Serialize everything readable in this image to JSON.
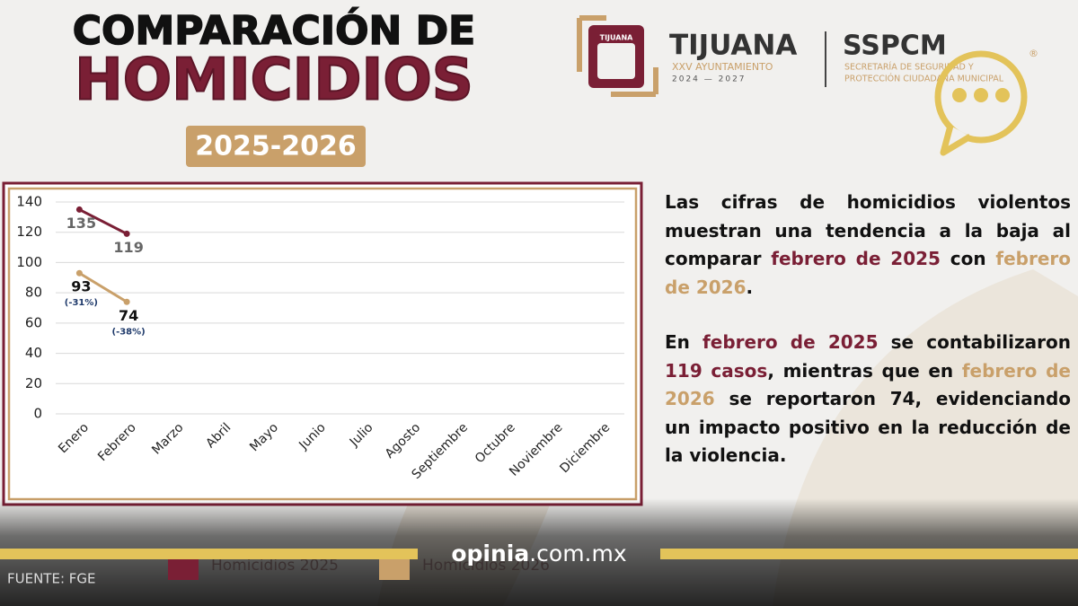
{
  "header": {
    "title_line1": "COMPARACIÓN DE",
    "title_line2": "HOMICIDIOS",
    "years": "2025-2026"
  },
  "logo": {
    "emblem": "TIJUANA",
    "city": "TIJUANA",
    "council": "XXV AYUNTAMIENTO",
    "period": "2024 — 2027",
    "agency": "SSPCM",
    "agency_line1": "SECRETARÍA DE SEGURIDAD Y",
    "agency_line2": "PROTECCIÓN CIUDADANA MUNICIPAL",
    "registered": "®"
  },
  "chart_data": {
    "type": "line",
    "categories": [
      "Enero",
      "Febrero",
      "Marzo",
      "Abril",
      "Mayo",
      "Junio",
      "Julio",
      "Agosto",
      "Septiembre",
      "Octubre",
      "Noviembre",
      "Diciembre"
    ],
    "series": [
      {
        "name": "Homicidios 2025",
        "color": "#7a1f35",
        "label_color": "#666666",
        "values": [
          135,
          119,
          null,
          null,
          null,
          null,
          null,
          null,
          null,
          null,
          null,
          null
        ]
      },
      {
        "name": "Homicidios 2026",
        "color": "#c9a06a",
        "label_color": "#111111",
        "values": [
          93,
          74,
          null,
          null,
          null,
          null,
          null,
          null,
          null,
          null,
          null,
          null
        ],
        "change_labels": [
          "(-31%)",
          "(-38%)",
          null,
          null,
          null,
          null,
          null,
          null,
          null,
          null,
          null,
          null
        ],
        "change_color": "#1f3a6b"
      }
    ],
    "ylim": [
      0,
      140
    ],
    "yticks": [
      0,
      20,
      40,
      60,
      80,
      100,
      120,
      140
    ],
    "grid": true
  },
  "body": {
    "paragraphs": [
      [
        {
          "text": "Las cifras de homicidios violentos muestran una tendencia a la baja al comparar "
        },
        {
          "text": "febrero de 2025",
          "color": "#7a1f35"
        },
        {
          "text": " con "
        },
        {
          "text": "febrero de 2026",
          "color": "#c9a06a"
        },
        {
          "text": "."
        }
      ],
      [
        {
          "text": "En "
        },
        {
          "text": "febrero de 2025",
          "color": "#7a1f35"
        },
        {
          "text": " se contabilizaron "
        },
        {
          "text": "119 casos",
          "color": "#7a1f35"
        },
        {
          "text": ", mientras que en "
        },
        {
          "text": "febrero de 2026",
          "color": "#c9a06a"
        },
        {
          "text": " se reportaron 74, evidenciando un impacto positivo en la reducción de la violencia."
        }
      ]
    ]
  },
  "footer": {
    "source": "FUENTE: FGE",
    "brand": "opinia",
    "domain": ".com.mx"
  }
}
